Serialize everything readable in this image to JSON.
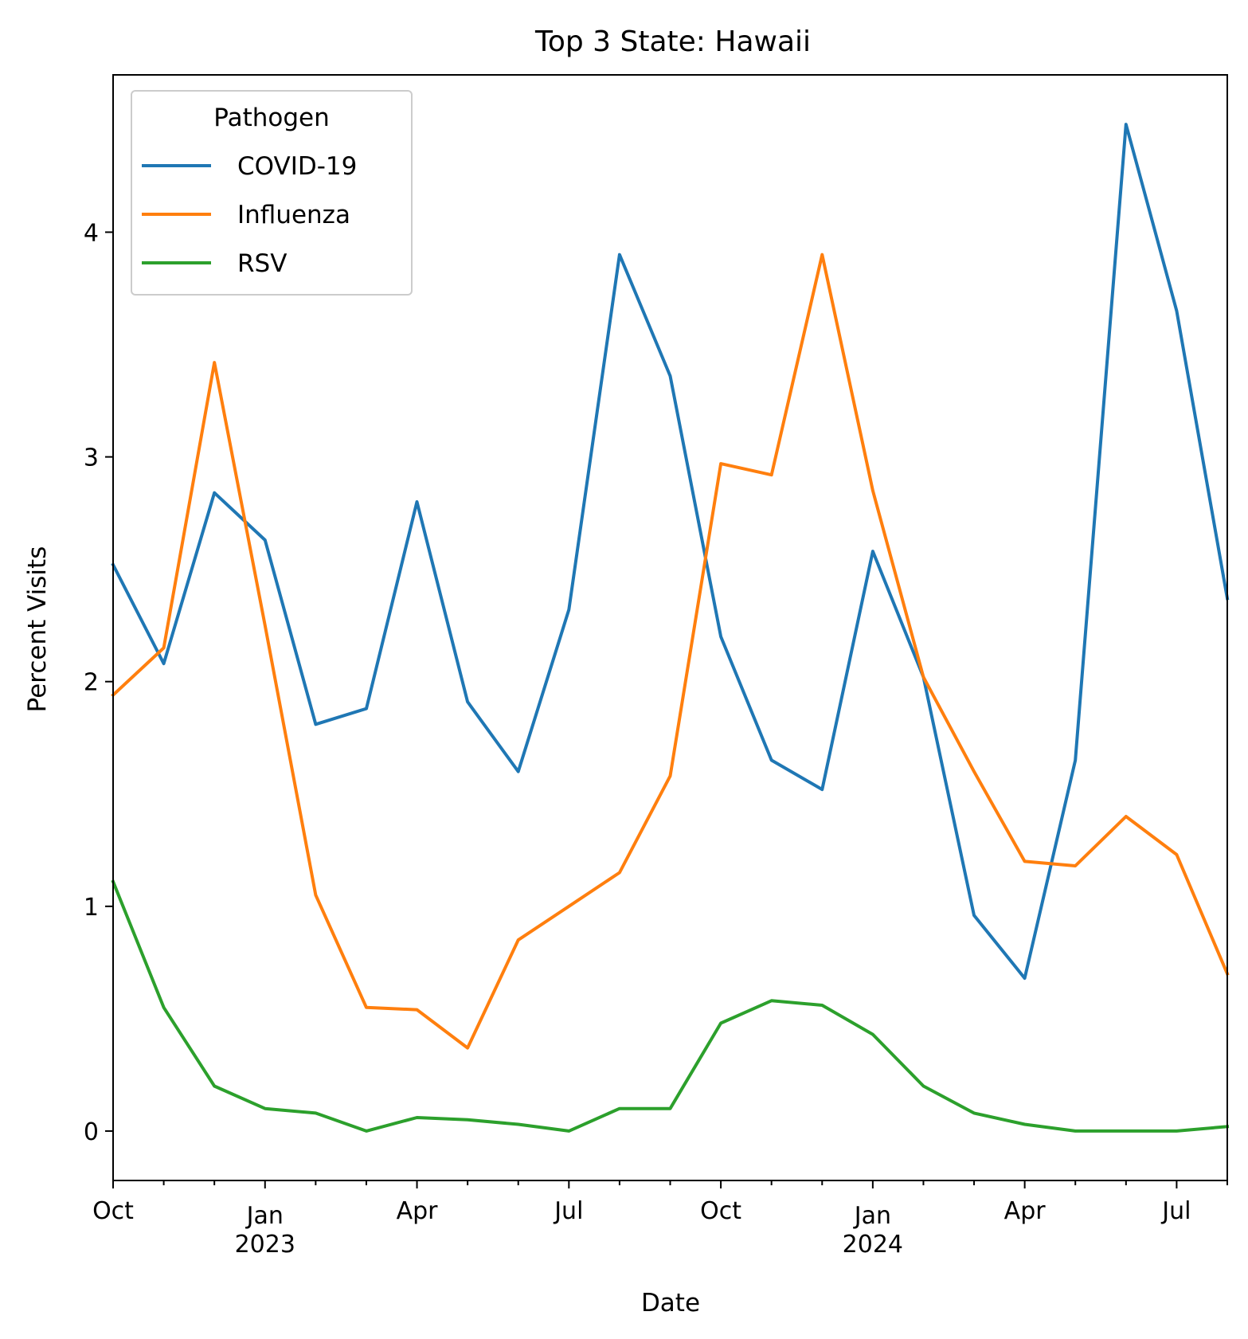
{
  "chart_data": {
    "type": "line",
    "title": "Top 3 State: Hawaii",
    "xlabel": "Date",
    "ylabel": "Percent Visits",
    "legend_title": "Pathogen",
    "legend_position": "top-left",
    "grid": false,
    "x": [
      "2022-10",
      "2022-11",
      "2022-12",
      "2023-01",
      "2023-02",
      "2023-03",
      "2023-04",
      "2023-05",
      "2023-06",
      "2023-07",
      "2023-08",
      "2023-09",
      "2023-10",
      "2023-11",
      "2023-12",
      "2024-01",
      "2024-02",
      "2024-03",
      "2024-04",
      "2024-05",
      "2024-06",
      "2024-07",
      "2024-08"
    ],
    "xlim": [
      "2022-10",
      "2024-08"
    ],
    "ylim": [
      -0.22,
      4.7
    ],
    "yticks": [
      0,
      1,
      2,
      3,
      4
    ],
    "yticklabels": [
      "0",
      "1",
      "2",
      "3",
      "4"
    ],
    "xticks": [
      {
        "x": "2022-10",
        "label": "Oct",
        "sublabel": ""
      },
      {
        "x": "2023-01",
        "label": "Jan",
        "sublabel": "2023"
      },
      {
        "x": "2023-04",
        "label": "Apr",
        "sublabel": ""
      },
      {
        "x": "2023-07",
        "label": "Jul",
        "sublabel": ""
      },
      {
        "x": "2023-10",
        "label": "Oct",
        "sublabel": ""
      },
      {
        "x": "2024-01",
        "label": "Jan",
        "sublabel": "2024"
      },
      {
        "x": "2024-04",
        "label": "Apr",
        "sublabel": ""
      },
      {
        "x": "2024-07",
        "label": "Jul",
        "sublabel": ""
      }
    ],
    "series": [
      {
        "name": "COVID-19",
        "color": "#1f77b4",
        "values": [
          2.52,
          2.08,
          2.84,
          2.63,
          1.81,
          1.88,
          2.8,
          1.91,
          1.6,
          2.32,
          3.9,
          3.36,
          2.2,
          1.65,
          1.52,
          2.58,
          2.02,
          0.96,
          0.68,
          1.65,
          4.48,
          3.65,
          2.37
        ]
      },
      {
        "name": "Influenza",
        "color": "#ff7f0e",
        "values": [
          1.94,
          2.15,
          3.42,
          2.25,
          1.05,
          0.55,
          0.54,
          0.37,
          0.85,
          1.0,
          1.15,
          1.58,
          2.97,
          2.92,
          3.9,
          2.85,
          2.02,
          1.6,
          1.2,
          1.18,
          1.4,
          1.23,
          0.7
        ]
      },
      {
        "name": "RSV",
        "color": "#2ca02c",
        "values": [
          1.11,
          0.55,
          0.2,
          0.1,
          0.08,
          0.0,
          0.06,
          0.05,
          0.03,
          0.0,
          0.1,
          0.1,
          0.48,
          0.58,
          0.56,
          0.43,
          0.2,
          0.08,
          0.03,
          0.0,
          0.0,
          0.0,
          0.02
        ]
      }
    ]
  }
}
